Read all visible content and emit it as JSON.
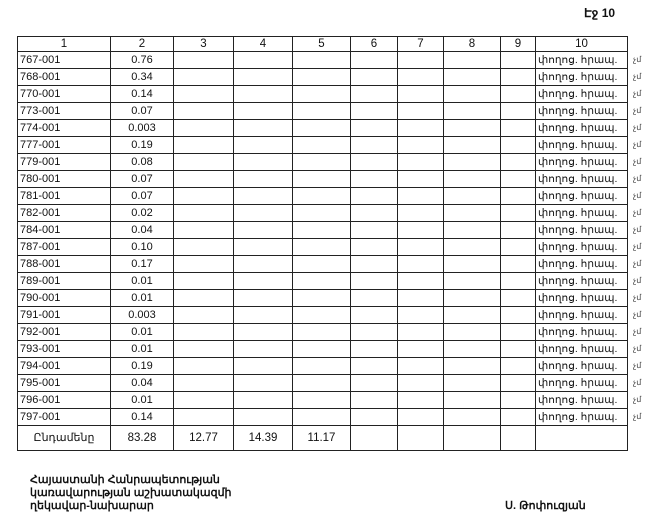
{
  "page_label": "Էջ 10",
  "table": {
    "headers": [
      "1",
      "2",
      "3",
      "4",
      "5",
      "6",
      "7",
      "8",
      "9",
      "10"
    ],
    "rows": [
      {
        "id": "767-001",
        "value": "0.76",
        "note": "փողոց. հրապ."
      },
      {
        "id": "768-001",
        "value": "0.34",
        "note": "փողոց. հրապ."
      },
      {
        "id": "770-001",
        "value": "0.14",
        "note": "փողոց. հրապ."
      },
      {
        "id": "773-001",
        "value": "0.07",
        "note": "փողոց. հրապ."
      },
      {
        "id": "774-001",
        "value": "0.003",
        "note": "փողոց. հրապ."
      },
      {
        "id": "777-001",
        "value": "0.19",
        "note": "փողոց. հրապ."
      },
      {
        "id": "779-001",
        "value": "0.08",
        "note": "փողոց. հրապ."
      },
      {
        "id": "780-001",
        "value": "0.07",
        "note": "փողոց. հրապ."
      },
      {
        "id": "781-001",
        "value": "0.07",
        "note": "փողոց. հրապ."
      },
      {
        "id": "782-001",
        "value": "0.02",
        "note": "փողոց. հրապ."
      },
      {
        "id": "784-001",
        "value": "0.04",
        "note": "փողոց. հրապ."
      },
      {
        "id": "787-001",
        "value": "0.10",
        "note": "փողոց. հրապ."
      },
      {
        "id": "788-001",
        "value": "0.17",
        "note": "փողոց. հրապ."
      },
      {
        "id": "789-001",
        "value": "0.01",
        "note": "փողոց. հրապ."
      },
      {
        "id": "790-001",
        "value": "0.01",
        "note": "փողոց. հրապ."
      },
      {
        "id": "791-001",
        "value": "0.003",
        "note": "փողոց. հրապ."
      },
      {
        "id": "792-001",
        "value": "0.01",
        "note": "փողոց. հրապ."
      },
      {
        "id": "793-001",
        "value": "0.01",
        "note": "փողոց. հրապ."
      },
      {
        "id": "794-001",
        "value": "0.19",
        "note": "փողոց. հրապ."
      },
      {
        "id": "795-001",
        "value": "0.04",
        "note": "փողոց. հրապ."
      },
      {
        "id": "796-001",
        "value": "0.01",
        "note": "փողոց. հրապ."
      },
      {
        "id": "797-001",
        "value": "0.14",
        "note": "փողոց. հրապ."
      }
    ],
    "margin_mark": "չմ",
    "total": {
      "label": "Ընդամենը",
      "col2": "83.28",
      "col3": "12.77",
      "col4": "14.39",
      "col5": "11.17"
    }
  },
  "footer": {
    "title_lines": [
      "Հայաստանի Հանրապետության",
      "կառավարության աշխատակազմի",
      "ղեկավար-նախարար"
    ],
    "signatory": "Ս. Թոփուզյան"
  }
}
